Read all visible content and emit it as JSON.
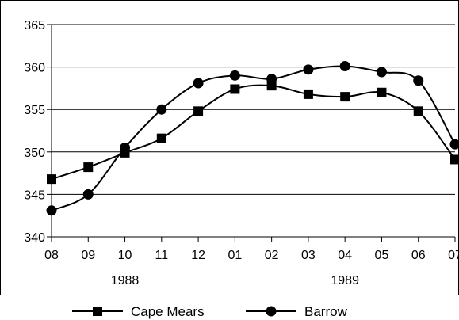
{
  "chart_data": {
    "type": "line",
    "title": "",
    "xlabel": "",
    "ylabel": "",
    "categories": [
      "08",
      "09",
      "10",
      "11",
      "12",
      "01",
      "02",
      "03",
      "04",
      "05",
      "06",
      "07"
    ],
    "year_labels": [
      {
        "label": "1988",
        "span": [
          "08",
          "12"
        ]
      },
      {
        "label": "1989",
        "span": [
          "01",
          "07"
        ]
      }
    ],
    "ylim": [
      340,
      365
    ],
    "yticks": [
      340,
      345,
      350,
      355,
      360,
      365
    ],
    "grid": "horizontal",
    "legend_position": "bottom",
    "series": [
      {
        "name": "Cape Mears",
        "marker": "square",
        "values": [
          346.8,
          348.2,
          349.9,
          351.6,
          354.8,
          357.4,
          357.8,
          356.8,
          356.5,
          357.0,
          354.8,
          349.1
        ]
      },
      {
        "name": "Barrow",
        "marker": "circle",
        "values": [
          343.1,
          345.0,
          350.5,
          355.0,
          358.1,
          359.0,
          358.6,
          359.7,
          360.1,
          359.4,
          358.4,
          350.9
        ]
      }
    ],
    "colors": {
      "line": "#000000",
      "grid": "#000000",
      "frame": "#000000"
    }
  }
}
